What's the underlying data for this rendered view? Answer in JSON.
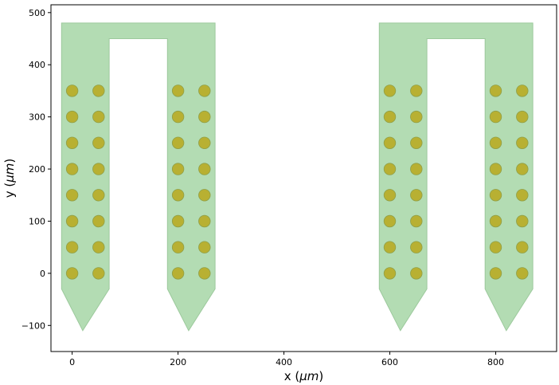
{
  "chart_data": {
    "type": "scatter",
    "title": "",
    "xlabel_text": "x (",
    "xlabel_unit": "μm",
    "xlabel_close": ")",
    "ylabel_text": "y (",
    "ylabel_unit": "μm",
    "ylabel_close": ")",
    "xlim": [
      -40,
      915
    ],
    "ylim": [
      -150,
      515
    ],
    "x_ticks": [
      0,
      200,
      400,
      600,
      800
    ],
    "x_tick_labels": [
      "0",
      "200",
      "400",
      "600",
      "800"
    ],
    "y_ticks": [
      -100,
      0,
      100,
      200,
      300,
      400,
      500
    ],
    "y_tick_labels": [
      "−100",
      "0",
      "100",
      "200",
      "300",
      "400",
      "500"
    ],
    "grid": false,
    "colors": {
      "probe_fill": "#b3dcb3",
      "probe_edge": "#9cc99c",
      "contact_fill": "#b8b032",
      "contact_edge": "#8f9f48",
      "axes": "#000000"
    },
    "probes": [
      {
        "name": "",
        "outline": [
          [
            -20,
            480
          ],
          [
            270,
            480
          ],
          [
            270,
            -30
          ],
          [
            220,
            -110
          ],
          [
            180,
            -30
          ],
          [
            180,
            450
          ],
          [
            70,
            450
          ],
          [
            70,
            -30
          ],
          [
            20,
            -110
          ],
          [
            -20,
            -30
          ]
        ]
      },
      {
        "name": "",
        "outline": [
          [
            580,
            480
          ],
          [
            870,
            480
          ],
          [
            870,
            -30
          ],
          [
            820,
            -110
          ],
          [
            780,
            -30
          ],
          [
            780,
            450
          ],
          [
            670,
            450
          ],
          [
            670,
            -30
          ],
          [
            620,
            -110
          ],
          [
            580,
            -30
          ]
        ]
      }
    ],
    "contact_radius": 10,
    "contact_columns_x": [
      0,
      50,
      200,
      250,
      600,
      650,
      800,
      850
    ],
    "contact_rows_y": [
      0,
      50,
      100,
      150,
      200,
      250,
      300,
      350
    ]
  }
}
